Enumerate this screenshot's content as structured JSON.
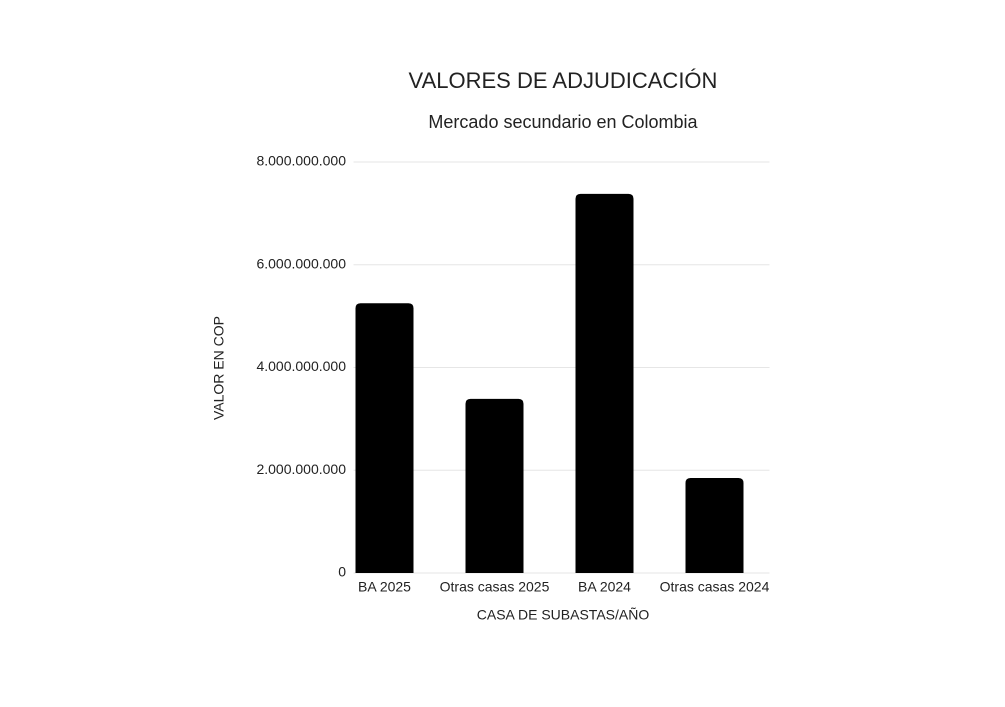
{
  "chart_data": {
    "type": "bar",
    "title": "VALORES DE ADJUDICACIÓN",
    "subtitle": "Mercado secundario en Colombia",
    "x_label": "CASA DE SUBASTAS/AÑO",
    "y_label": "VALOR EN COP",
    "categories": [
      "BA 2025",
      "Otras casas 2025",
      "BA 2024",
      "Otras casas 2024"
    ],
    "values": [
      5250000000,
      3390000000,
      7380000000,
      1850000000
    ],
    "color": "#000000",
    "ylim": [
      0,
      8000000000
    ],
    "yticks": [
      0,
      {
        "value": 2000000000,
        "label": "2.000.000.000"
      },
      {
        "value": 4000000000,
        "label": "4.000.000.000"
      },
      {
        "value": 6000000000,
        "label": "6.000.000.000"
      },
      {
        "value": 8000000000,
        "label": "8.000.000.000"
      }
    ],
    "grid": true
  }
}
